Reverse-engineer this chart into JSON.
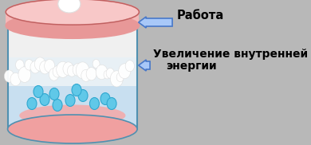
{
  "bg_color": "#b8b8b8",
  "lid_color_top": "#f5b8b8",
  "lid_color_side": "#e89898",
  "water_color": "#c8dff0",
  "steam_band_color": "#e8f0f5",
  "bottom_ellipse_color": "#f0a0a0",
  "bubble_color": "#60c8e8",
  "bubble_edge": "#30a8d0",
  "steam_color": "#ffffff",
  "wall_color": "#5090b0",
  "arrow_color": "#4878c8",
  "arrow_fill": "#a8c8f8",
  "label1": "Работа",
  "label2": "Увеличение внутренней",
  "label2b": "энергии",
  "label_fontsize": 10.5,
  "label_fontweight": "bold"
}
